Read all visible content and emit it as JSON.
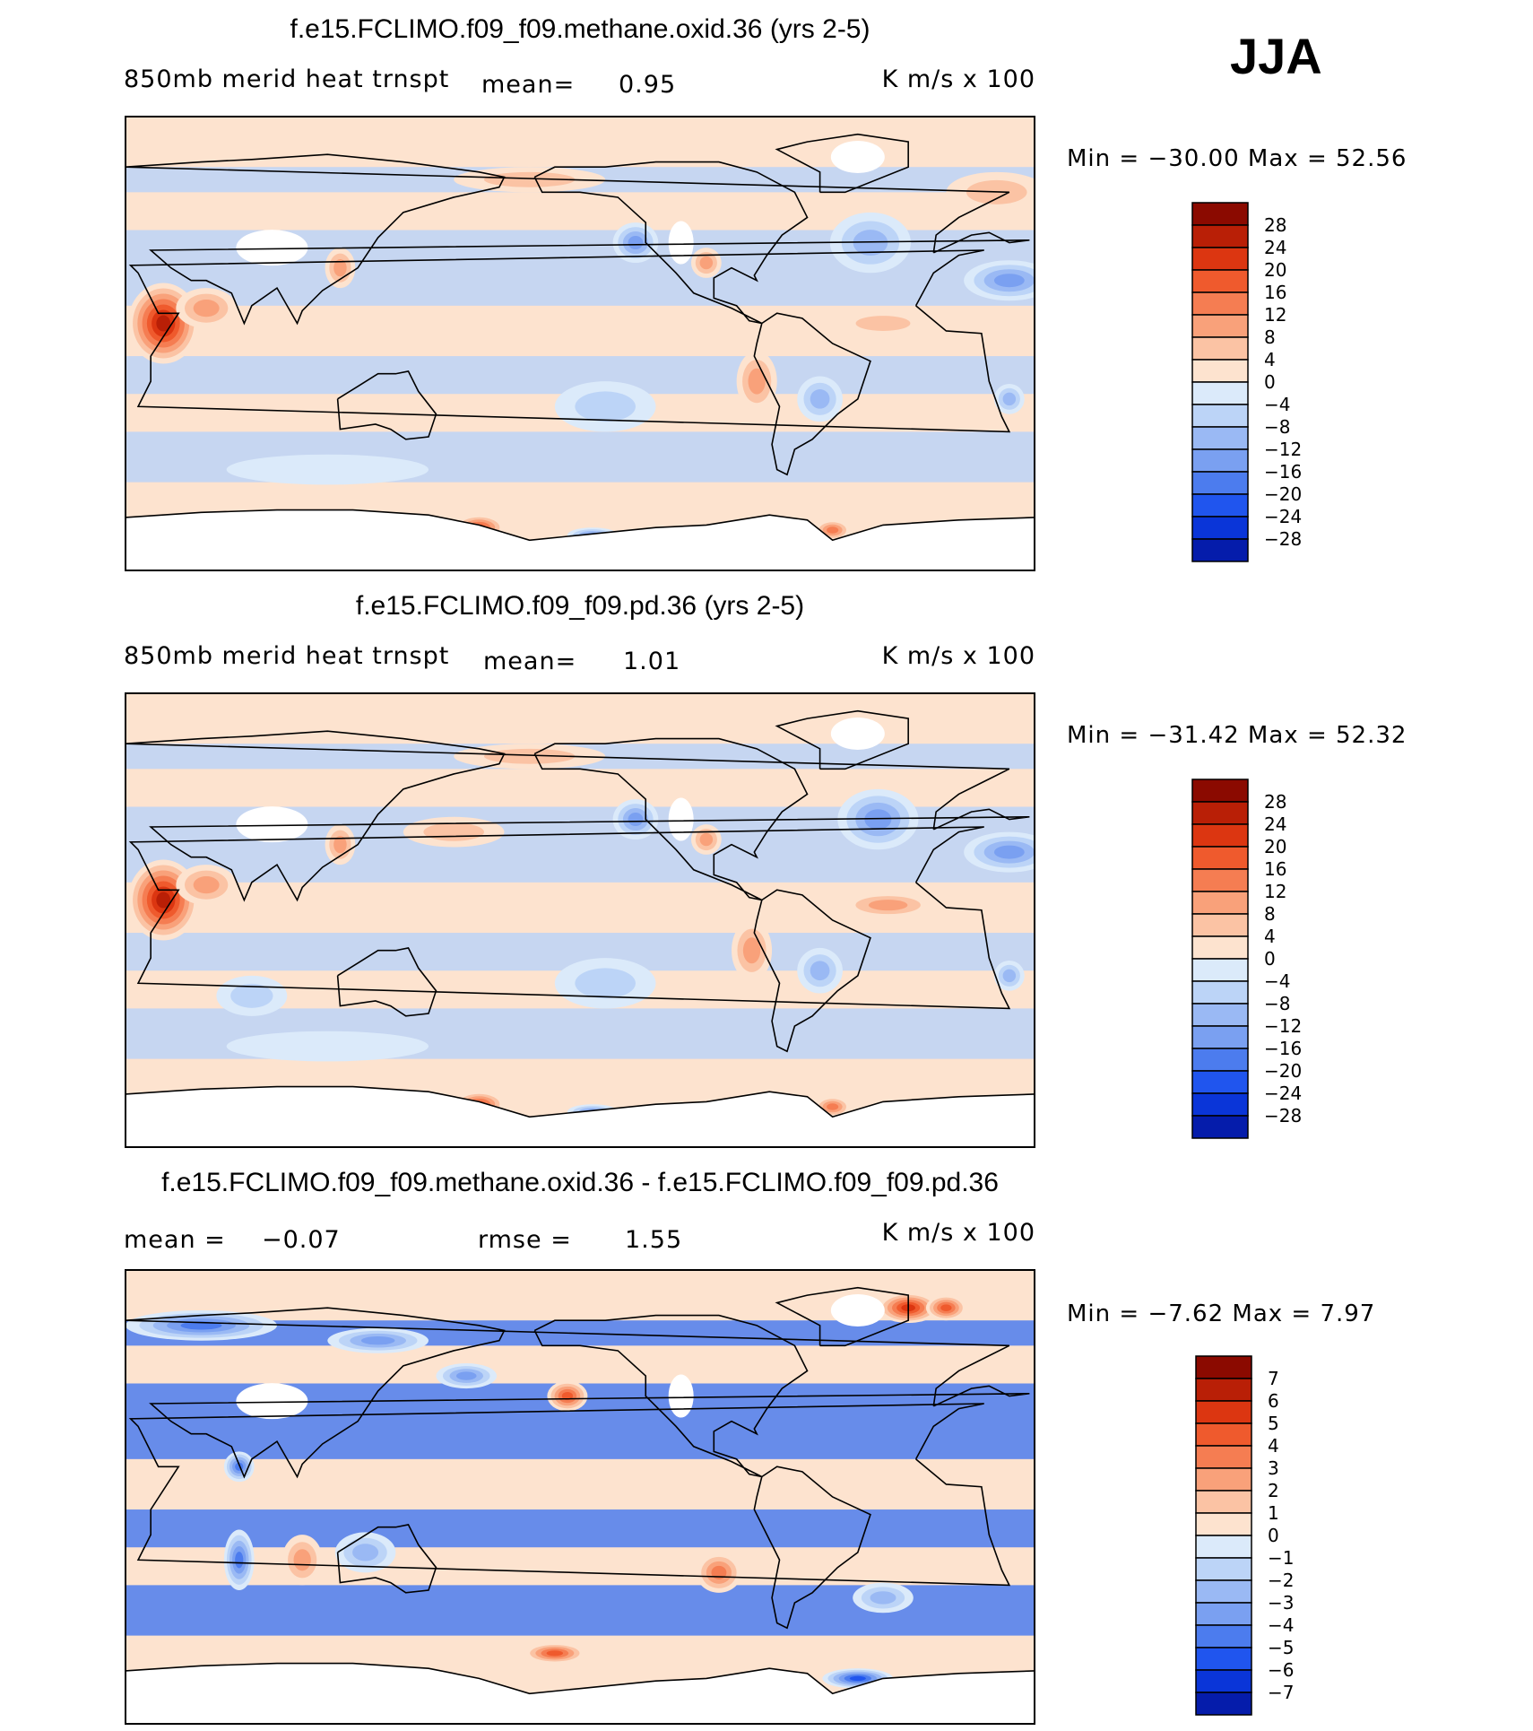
{
  "figure": {
    "season": "JJA",
    "units": "K m/s x 100"
  },
  "colors": {
    "positive": [
      "#fde3cf",
      "#fbc3a4",
      "#f9a17a",
      "#f57d52",
      "#ef5a2d",
      "#dc3611",
      "#b91f06",
      "#8b0a00"
    ],
    "negative": [
      "#dbeafa",
      "#bcd4f7",
      "#9ab9f4",
      "#7aa0f1",
      "#4c7cee",
      "#2055ee",
      "#0a35d8",
      "#051cab",
      "#000c80"
    ],
    "land_missing": "#ffffff",
    "coast": "#000000"
  },
  "chart_data": [
    {
      "type": "heatmap",
      "title": "f.e15.FCLIMO.f09_f09.methane.oxid.36 (yrs 2-5)",
      "variable": "850mb  merid  heat  trnspt",
      "mean_label": "mean=",
      "mean_value": "0.95",
      "units": "K  m/s  x  100",
      "min_text": "Min  =  −30.00  Max  =    52.56",
      "min": -30.0,
      "max": 52.56,
      "colorbar_ticks": [
        "28",
        "24",
        "20",
        "16",
        "12",
        "8",
        "4",
        "0",
        "−4",
        "−8",
        "−12",
        "−16",
        "−20",
        "−24",
        "−28"
      ],
      "levels": [
        28,
        24,
        20,
        16,
        12,
        8,
        4,
        0,
        -4,
        -8,
        -12,
        -16,
        -20,
        -24,
        -28
      ],
      "features": [
        {
          "name": "east-africa-jet",
          "lon": 45,
          "lat": 8,
          "value": 28,
          "rx": 14,
          "ry": 16
        },
        {
          "name": "arabian-sea",
          "lon": 62,
          "lat": 14,
          "value": 14,
          "rx": 12,
          "ry": 8
        },
        {
          "name": "sahara-neg",
          "lon": 20,
          "lat": 25,
          "value": -18,
          "rx": 18,
          "ry": 8
        },
        {
          "name": "north-atlantic-neg",
          "lon": -35,
          "lat": 40,
          "value": -14,
          "rx": 16,
          "ry": 12
        },
        {
          "name": "ne-pacific-neg",
          "lon": -128,
          "lat": 40,
          "value": -16,
          "rx": 9,
          "ry": 8
        },
        {
          "name": "gulf-pos",
          "lon": -100,
          "lat": 32,
          "value": 12,
          "rx": 6,
          "ry": 6
        },
        {
          "name": "s-america-neg",
          "lon": -55,
          "lat": -22,
          "value": -14,
          "rx": 9,
          "ry": 9
        },
        {
          "name": "peru-pos",
          "lon": -80,
          "lat": -15,
          "value": 12,
          "rx": 8,
          "ry": 12
        },
        {
          "name": "tropical-atlantic-pos",
          "lon": -30,
          "lat": 8,
          "value": 10,
          "rx": 18,
          "ry": 5
        },
        {
          "name": "south-africa-neg",
          "lon": 20,
          "lat": -22,
          "value": -12,
          "rx": 6,
          "ry": 6
        },
        {
          "name": "east-china-pos",
          "lon": 115,
          "lat": 30,
          "value": 14,
          "rx": 6,
          "ry": 8
        },
        {
          "name": "s-pacific-neg",
          "lon": -140,
          "lat": -25,
          "value": -8,
          "rx": 20,
          "ry": 10
        },
        {
          "name": "southern-ocean-neg",
          "lon": 110,
          "lat": -50,
          "value": -6,
          "rx": 40,
          "ry": 6
        },
        {
          "name": "antarctic-ross-pos",
          "lon": 170,
          "lat": -73,
          "value": 22,
          "rx": 10,
          "ry": 5
        },
        {
          "name": "antarctic-weddell-pos",
          "lon": -50,
          "lat": -74,
          "value": 18,
          "rx": 7,
          "ry": 4
        },
        {
          "name": "antarctic-neg",
          "lon": -145,
          "lat": -76,
          "value": -18,
          "rx": 10,
          "ry": 3
        },
        {
          "name": "arctic-pos",
          "lon": -170,
          "lat": 65,
          "value": 8,
          "rx": 30,
          "ry": 5
        },
        {
          "name": "europe-pos",
          "lon": 15,
          "lat": 60,
          "value": 8,
          "rx": 20,
          "ry": 8
        }
      ]
    },
    {
      "type": "heatmap",
      "title": "f.e15.FCLIMO.f09_f09.pd.36 (yrs 2-5)",
      "variable": "850mb  merid  heat  trnspt",
      "mean_label": "mean=",
      "mean_value": "1.01",
      "units": "K  m/s  x  100",
      "min_text": "Min  =  −31.42  Max  =    52.32",
      "min": -31.42,
      "max": 52.32,
      "colorbar_ticks": [
        "28",
        "24",
        "20",
        "16",
        "12",
        "8",
        "4",
        "0",
        "−4",
        "−8",
        "−12",
        "−16",
        "−20",
        "−24",
        "−28"
      ],
      "levels": [
        28,
        24,
        20,
        16,
        12,
        8,
        4,
        0,
        -4,
        -8,
        -12,
        -16,
        -20,
        -24,
        -28
      ],
      "features": [
        {
          "name": "east-africa-jet",
          "lon": 45,
          "lat": 8,
          "value": 28,
          "rx": 14,
          "ry": 16
        },
        {
          "name": "arabian-sea",
          "lon": 62,
          "lat": 14,
          "value": 14,
          "rx": 12,
          "ry": 8
        },
        {
          "name": "sahara-neg",
          "lon": 20,
          "lat": 27,
          "value": -16,
          "rx": 18,
          "ry": 8
        },
        {
          "name": "north-atlantic-neg",
          "lon": -32,
          "lat": 40,
          "value": -16,
          "rx": 16,
          "ry": 12
        },
        {
          "name": "ne-pacific-neg",
          "lon": -128,
          "lat": 40,
          "value": -18,
          "rx": 9,
          "ry": 8
        },
        {
          "name": "gulf-pos",
          "lon": -100,
          "lat": 32,
          "value": 14,
          "rx": 6,
          "ry": 6
        },
        {
          "name": "s-america-neg",
          "lon": -55,
          "lat": -20,
          "value": -12,
          "rx": 9,
          "ry": 9
        },
        {
          "name": "peru-pos",
          "lon": -82,
          "lat": -12,
          "value": 12,
          "rx": 8,
          "ry": 12
        },
        {
          "name": "tropical-atlantic-pos",
          "lon": -28,
          "lat": 6,
          "value": 12,
          "rx": 18,
          "ry": 5
        },
        {
          "name": "south-africa-neg",
          "lon": 20,
          "lat": -22,
          "value": -14,
          "rx": 6,
          "ry": 6
        },
        {
          "name": "east-china-pos",
          "lon": 115,
          "lat": 30,
          "value": 14,
          "rx": 6,
          "ry": 8
        },
        {
          "name": "n-pacific-pos",
          "lon": 160,
          "lat": 35,
          "value": 8,
          "rx": 20,
          "ry": 6
        },
        {
          "name": "s-pacific-neg",
          "lon": -140,
          "lat": -25,
          "value": -10,
          "rx": 20,
          "ry": 10
        },
        {
          "name": "s-indian-neg",
          "lon": 80,
          "lat": -30,
          "value": -8,
          "rx": 14,
          "ry": 8
        },
        {
          "name": "southern-ocean-neg",
          "lon": 110,
          "lat": -50,
          "value": -6,
          "rx": 40,
          "ry": 6
        },
        {
          "name": "antarctic-ross-pos",
          "lon": 170,
          "lat": -73,
          "value": 22,
          "rx": 10,
          "ry": 5
        },
        {
          "name": "antarctic-weddell-pos",
          "lon": -50,
          "lat": -74,
          "value": 18,
          "rx": 7,
          "ry": 4
        },
        {
          "name": "antarctic-neg",
          "lon": -145,
          "lat": -76,
          "value": -18,
          "rx": 10,
          "ry": 3
        },
        {
          "name": "arctic-pos",
          "lon": -170,
          "lat": 65,
          "value": 8,
          "rx": 30,
          "ry": 5
        }
      ]
    },
    {
      "type": "heatmap",
      "title": "f.e15.FCLIMO.f09_f09.methane.oxid.36 - f.e15.FCLIMO.f09_f09.pd.36",
      "mean_label": "mean  =",
      "mean_value": "−0.07",
      "rmse_label": "rmse  =",
      "rmse_value": "1.55",
      "units": "K  m/s  x  100",
      "min_text": "Min  =     −7.62  Max  =      7.97",
      "min": -7.62,
      "max": 7.97,
      "colorbar_ticks": [
        "7",
        "6",
        "5",
        "4",
        "3",
        "2",
        "1",
        "0",
        "−1",
        "−2",
        "−3",
        "−4",
        "−5",
        "−6",
        "−7"
      ],
      "levels": [
        7,
        6,
        5,
        4,
        3,
        2,
        1,
        0,
        -1,
        -2,
        -3,
        -4,
        -5,
        -6,
        -7
      ],
      "features": [
        {
          "name": "n-pacific-pos",
          "lon": -155,
          "lat": 40,
          "value": 5,
          "rx": 8,
          "ry": 6
        },
        {
          "name": "arctic-neg",
          "lon": 60,
          "lat": 68,
          "value": -5,
          "rx": 30,
          "ry": 6
        },
        {
          "name": "siberia-neg",
          "lon": 130,
          "lat": 62,
          "value": -4,
          "rx": 20,
          "ry": 5
        },
        {
          "name": "n-atlantic-pos",
          "lon": -20,
          "lat": 75,
          "value": 6,
          "rx": 12,
          "ry": 6
        },
        {
          "name": "w-europe-pos",
          "lon": -5,
          "lat": 75,
          "value": 5,
          "rx": 8,
          "ry": 5
        },
        {
          "name": "kamchatka-neg",
          "lon": 165,
          "lat": 48,
          "value": -4,
          "rx": 12,
          "ry": 5
        },
        {
          "name": "india-neg",
          "lon": 75,
          "lat": 12,
          "value": -5,
          "rx": 6,
          "ry": 6
        },
        {
          "name": "s-indian-neg",
          "lon": 75,
          "lat": -25,
          "value": -5,
          "rx": 6,
          "ry": 12
        },
        {
          "name": "s-pacific-pos",
          "lon": -95,
          "lat": -30,
          "value": 4,
          "rx": 9,
          "ry": 8
        },
        {
          "name": "s-ocean-pos",
          "lon": -160,
          "lat": -62,
          "value": 5,
          "rx": 12,
          "ry": 4
        },
        {
          "name": "weddell-neg",
          "lon": -40,
          "lat": -72,
          "value": -6,
          "rx": 14,
          "ry": 4
        },
        {
          "name": "indian-pos",
          "lon": 100,
          "lat": -25,
          "value": 3,
          "rx": 8,
          "ry": 10
        },
        {
          "name": "aus-neg",
          "lon": 125,
          "lat": -22,
          "value": -3,
          "rx": 12,
          "ry": 8
        },
        {
          "name": "atl-neg",
          "lon": -30,
          "lat": -40,
          "value": -3,
          "rx": 12,
          "ry": 6
        }
      ]
    }
  ]
}
